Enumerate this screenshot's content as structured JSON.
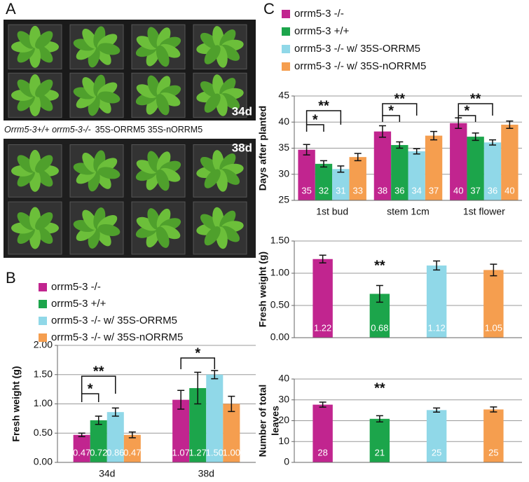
{
  "panel_a": {
    "label": "A",
    "photo_1_tag": "34d",
    "photo_2_tag": "38d",
    "caption_italic": "Orrm5-3+/+ orrm5-3-/-",
    "caption": "35S-ORRM5 35S-nORRM5"
  },
  "panel_b": {
    "label": "B"
  },
  "panel_c": {
    "label": "C"
  },
  "chart_data": [
    {
      "type": "bar",
      "ylabel": "Fresh weight (g)",
      "categories": [
        "34d",
        "38d"
      ],
      "series": [
        {
          "name": "orrm5-3 -/-",
          "color": "#c1258f",
          "values": [
            0.47,
            1.07
          ],
          "value_labels": [
            "0.47",
            "1.07"
          ],
          "errors": [
            0.03,
            0.16
          ]
        },
        {
          "name": "orrm5-3 +/+",
          "color": "#1ca54b",
          "values": [
            0.72,
            1.27
          ],
          "value_labels": [
            "0.72",
            "1.27"
          ],
          "errors": [
            0.07,
            0.27
          ]
        },
        {
          "name": "orrm5-3 -/- w/ 35S-ORRM5",
          "color": "#90d8e8",
          "values": [
            0.86,
            1.5
          ],
          "value_labels": [
            "0.86",
            "1.50"
          ],
          "errors": [
            0.07,
            0.07
          ]
        },
        {
          "name": "orrm5-3 -/- w/ 35S-nORRM5",
          "color": "#f59e4f",
          "values": [
            0.47,
            1.0
          ],
          "value_labels": [
            "0.47",
            "1.00"
          ],
          "errors": [
            0.05,
            0.13
          ]
        }
      ],
      "ylim": [
        0,
        2
      ],
      "yticks": [
        {
          "value": 0,
          "label": "0.00"
        },
        {
          "value": 0.5,
          "label": "0.50"
        },
        {
          "value": 1,
          "label": "1.00"
        },
        {
          "value": 1.5,
          "label": "1.50"
        },
        {
          "value": 2,
          "label": "2.00"
        }
      ],
      "grid": true,
      "annotations": [
        {
          "text": "**"
        },
        {
          "text": "*"
        },
        {
          "text": "*"
        }
      ]
    },
    {
      "type": "bar",
      "ylabel": "Days after planted",
      "categories": [
        "1st bud",
        "stem 1cm",
        "1st flower"
      ],
      "series": [
        {
          "name": "orrm5-3 -/-",
          "color": "#c1258f",
          "values": [
            34.7,
            38.2,
            39.8
          ],
          "value_labels": [
            "35",
            "38",
            "40"
          ],
          "errors": [
            1.0,
            1.1,
            1.0
          ]
        },
        {
          "name": "orrm5-3 +/+",
          "color": "#1ca54b",
          "values": [
            32.0,
            35.6,
            37.2
          ],
          "value_labels": [
            "32",
            "36",
            "37"
          ],
          "errors": [
            0.6,
            0.6,
            0.7
          ]
        },
        {
          "name": "orrm5-3 -/- w/ 35S-ORRM5",
          "color": "#90d8e8",
          "values": [
            31.0,
            34.4,
            36.1
          ],
          "value_labels": [
            "31",
            "34",
            "36"
          ],
          "errors": [
            0.6,
            0.5,
            0.5
          ]
        },
        {
          "name": "orrm5-3 -/- w/ 35S-nORRM5",
          "color": "#f59e4f",
          "values": [
            33.3,
            37.4,
            39.5
          ],
          "value_labels": [
            "33",
            "37",
            "40"
          ],
          "errors": [
            0.7,
            0.8,
            0.7
          ]
        }
      ],
      "ylim": [
        25,
        45
      ],
      "yticks": [
        25,
        30,
        35,
        40,
        45
      ],
      "grid": true,
      "annotations": [
        {
          "text": "**"
        },
        {
          "text": "*"
        },
        {
          "text": "**"
        },
        {
          "text": "*"
        },
        {
          "text": "**"
        },
        {
          "text": "*"
        }
      ]
    },
    {
      "type": "bar",
      "ylabel": "Fresh weight (g)",
      "categories": [
        null,
        null,
        null,
        null
      ],
      "values": [
        1.22,
        0.68,
        1.12,
        1.05
      ],
      "value_labels": [
        "1.22",
        "0.68",
        "1.12",
        "1.05"
      ],
      "errors": [
        0.06,
        0.13,
        0.07,
        0.09
      ],
      "colors": [
        "#c1258f",
        "#1ca54b",
        "#90d8e8",
        "#f59e4f"
      ],
      "ylim": [
        0,
        1.5
      ],
      "yticks": [
        {
          "value": 0,
          "label": "0.00"
        },
        {
          "value": 0.5,
          "label": "0.50"
        },
        {
          "value": 1,
          "label": "1.00"
        },
        {
          "value": 1.5,
          "label": "1.50"
        }
      ],
      "grid": true,
      "annotations": [
        {
          "text": "**"
        }
      ]
    },
    {
      "type": "bar",
      "ylabel": [
        "Number of total",
        "leaves"
      ],
      "categories": [
        null,
        null,
        null,
        null
      ],
      "values": [
        27.7,
        20.9,
        25.1,
        25.4
      ],
      "value_labels": [
        "28",
        "21",
        "25",
        "25"
      ],
      "errors": [
        1.2,
        1.5,
        1.0,
        1.2
      ],
      "colors": [
        "#c1258f",
        "#1ca54b",
        "#90d8e8",
        "#f59e4f"
      ],
      "ylim": [
        0,
        40
      ],
      "yticks": [
        0,
        10,
        20,
        30,
        40
      ],
      "grid": true,
      "annotations": [
        {
          "text": "**"
        }
      ]
    }
  ]
}
